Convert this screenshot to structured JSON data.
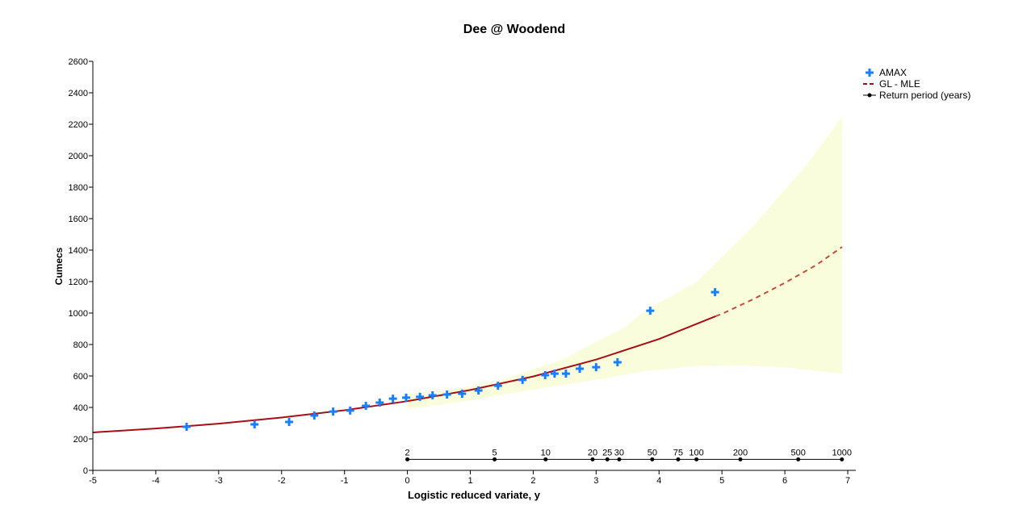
{
  "chart_data": {
    "type": "scatter",
    "title": "Dee @ Woodend",
    "xlabel": "Logistic reduced variate, y",
    "ylabel": "Cumecs",
    "xlim": [
      -5,
      7
    ],
    "ylim": [
      0,
      2600
    ],
    "xticks": [
      -5,
      -4,
      -3,
      -2,
      -1,
      0,
      1,
      2,
      3,
      4,
      5,
      6,
      7
    ],
    "yticks": [
      0,
      200,
      400,
      600,
      800,
      1000,
      1200,
      1400,
      1600,
      1800,
      2000,
      2200,
      2400,
      2600
    ],
    "grid": false,
    "legend_position": "top-right",
    "colors": {
      "amax": "#1a7fff",
      "fit": "#a50f15",
      "fit_extrapolated": "#c0503a",
      "confidence_band": "#fafddc",
      "return_period": "#000000"
    },
    "series": [
      {
        "name": "AMAX",
        "marker": "plus",
        "points": [
          [
            -3.51,
            277
          ],
          [
            -2.43,
            292
          ],
          [
            -1.88,
            308
          ],
          [
            -1.48,
            349
          ],
          [
            -1.18,
            374
          ],
          [
            -0.91,
            380
          ],
          [
            -0.66,
            410
          ],
          [
            -0.44,
            431
          ],
          [
            -0.23,
            456
          ],
          [
            -0.02,
            462
          ],
          [
            0.2,
            467
          ],
          [
            0.4,
            477
          ],
          [
            0.63,
            482
          ],
          [
            0.87,
            487
          ],
          [
            1.13,
            508
          ],
          [
            1.44,
            538
          ],
          [
            1.83,
            575
          ],
          [
            2.19,
            605
          ],
          [
            2.34,
            615
          ],
          [
            2.52,
            615
          ],
          [
            2.74,
            646
          ],
          [
            3.0,
            656
          ],
          [
            3.34,
            687
          ],
          [
            3.86,
            1015
          ],
          [
            4.89,
            1133
          ]
        ]
      },
      {
        "name": "GL - MLE",
        "line": "solid-then-dashed",
        "solid_points": [
          [
            -5,
            241
          ],
          [
            -4,
            266
          ],
          [
            -3,
            297
          ],
          [
            -2,
            336
          ],
          [
            -1,
            382
          ],
          [
            0,
            440
          ],
          [
            1,
            511
          ],
          [
            2,
            597
          ],
          [
            3,
            704
          ],
          [
            4,
            835
          ],
          [
            4.9,
            980
          ]
        ],
        "dashed_points": [
          [
            4.9,
            980
          ],
          [
            5,
            995
          ],
          [
            5.5,
            1088
          ],
          [
            6,
            1192
          ],
          [
            6.5,
            1305
          ],
          [
            6.91,
            1420
          ]
        ]
      }
    ],
    "confidence_band": {
      "upper": [
        [
          0,
          487
        ],
        [
          0.5,
          505
        ],
        [
          1,
          535
        ],
        [
          1.5,
          575
        ],
        [
          1.83,
          620
        ],
        [
          2.5,
          710
        ],
        [
          2.89,
          795
        ],
        [
          3.44,
          905
        ],
        [
          3.79,
          1020
        ],
        [
          4.59,
          1195
        ],
        [
          5.5,
          1554
        ],
        [
          6.36,
          1949
        ],
        [
          6.91,
          2246
        ]
      ],
      "lower": [
        [
          0,
          390
        ],
        [
          0.5,
          415
        ],
        [
          1,
          445
        ],
        [
          1.83,
          502
        ],
        [
          2.5,
          545
        ],
        [
          3,
          575
        ],
        [
          3.79,
          631
        ],
        [
          4.6,
          662
        ],
        [
          5.3,
          667
        ],
        [
          6,
          655
        ],
        [
          6.91,
          615
        ]
      ]
    },
    "return_period": {
      "name": "Return period (years)",
      "level": 70,
      "periods": [
        {
          "label": "2",
          "y": 0
        },
        {
          "label": "5",
          "y": 1.386
        },
        {
          "label": "10",
          "y": 2.197
        },
        {
          "label": "20",
          "y": 2.944
        },
        {
          "label": "25",
          "y": 3.178
        },
        {
          "label": "30",
          "y": 3.367
        },
        {
          "label": "50",
          "y": 3.892
        },
        {
          "label": "75",
          "y": 4.304
        },
        {
          "label": "100",
          "y": 4.595
        },
        {
          "label": "200",
          "y": 5.293
        },
        {
          "label": "500",
          "y": 6.213
        },
        {
          "label": "1000",
          "y": 6.907
        }
      ]
    }
  }
}
